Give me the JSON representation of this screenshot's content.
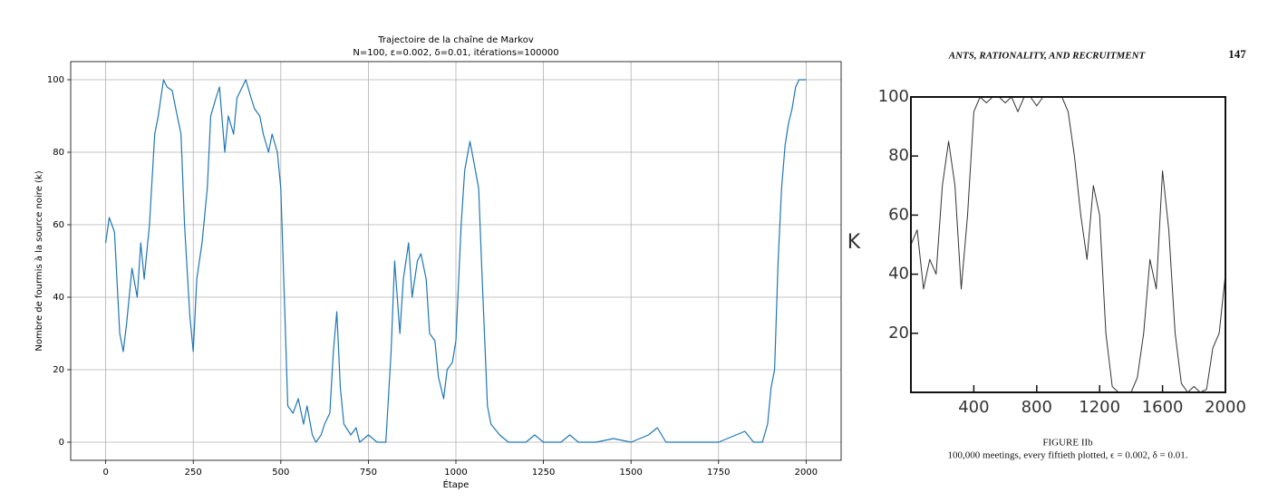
{
  "chart_data": [
    {
      "type": "line",
      "title": "Trajectoire de la chaîne de Markov",
      "subtitle": "N=100, ε=0.002, δ=0.01, itérations=100000",
      "xlabel": "Étape",
      "ylabel": "Nombre de fourmis à la source noire (k)",
      "xlim": [
        -100,
        2100
      ],
      "ylim": [
        -5,
        105
      ],
      "xticks": [
        0,
        250,
        500,
        750,
        1000,
        1250,
        1500,
        1750,
        2000
      ],
      "yticks": [
        0,
        20,
        40,
        60,
        80,
        100
      ],
      "grid": true,
      "series": [
        {
          "name": "k",
          "color": "#1f77b4",
          "x": [
            0,
            10,
            25,
            40,
            50,
            60,
            75,
            90,
            100,
            110,
            125,
            140,
            150,
            165,
            175,
            190,
            200,
            215,
            225,
            240,
            250,
            260,
            275,
            290,
            300,
            315,
            325,
            340,
            350,
            365,
            375,
            390,
            400,
            415,
            425,
            440,
            450,
            465,
            475,
            490,
            500,
            510,
            520,
            535,
            550,
            565,
            575,
            590,
            600,
            615,
            625,
            640,
            650,
            660,
            670,
            680,
            700,
            715,
            725,
            750,
            775,
            800,
            815,
            825,
            840,
            850,
            865,
            875,
            890,
            900,
            915,
            925,
            940,
            950,
            965,
            975,
            990,
            1000,
            1015,
            1025,
            1040,
            1050,
            1065,
            1075,
            1090,
            1100,
            1125,
            1150,
            1200,
            1225,
            1250,
            1300,
            1325,
            1350,
            1400,
            1450,
            1500,
            1550,
            1575,
            1600,
            1650,
            1700,
            1750,
            1800,
            1825,
            1850,
            1875,
            1890,
            1900,
            1910,
            1920,
            1930,
            1940,
            1950,
            1960,
            1970,
            1980,
            2000
          ],
          "values": [
            55,
            62,
            58,
            30,
            25,
            33,
            48,
            40,
            55,
            45,
            60,
            85,
            90,
            100,
            98,
            97,
            92,
            85,
            60,
            35,
            25,
            45,
            55,
            70,
            90,
            95,
            98,
            80,
            90,
            85,
            95,
            98,
            100,
            95,
            92,
            90,
            85,
            80,
            85,
            80,
            70,
            40,
            10,
            8,
            12,
            5,
            10,
            2,
            0,
            2,
            5,
            8,
            25,
            36,
            15,
            5,
            2,
            4,
            0,
            2,
            0,
            0,
            25,
            50,
            30,
            45,
            55,
            40,
            50,
            52,
            45,
            30,
            28,
            18,
            12,
            20,
            22,
            28,
            60,
            75,
            83,
            78,
            70,
            45,
            10,
            5,
            2,
            0,
            0,
            2,
            0,
            0,
            2,
            0,
            0,
            1,
            0,
            2,
            4,
            0,
            0,
            0,
            0,
            2,
            3,
            0,
            0,
            5,
            15,
            20,
            50,
            70,
            82,
            88,
            92,
            98,
            100,
            100
          ]
        }
      ]
    },
    {
      "type": "line",
      "header": "ANTS, RATIONALITY, AND RECRUITMENT",
      "page_number": "147",
      "ylabel": "K",
      "caption_title": "FIGURE IIb",
      "caption": "100,000 meetings, every fiftieth plotted, ϵ = 0.002, δ = 0.01.",
      "xlim": [
        0,
        2000
      ],
      "ylim": [
        0,
        100
      ],
      "xticks": [
        400,
        800,
        1200,
        1600,
        2000
      ],
      "yticks": [
        20,
        40,
        60,
        80,
        100
      ],
      "grid": false,
      "series": [
        {
          "name": "K",
          "color": "#333333",
          "x": [
            0,
            40,
            80,
            120,
            160,
            200,
            240,
            280,
            320,
            360,
            400,
            440,
            480,
            520,
            560,
            600,
            640,
            680,
            720,
            760,
            800,
            840,
            880,
            920,
            960,
            1000,
            1040,
            1080,
            1120,
            1160,
            1200,
            1240,
            1280,
            1320,
            1360,
            1400,
            1440,
            1480,
            1520,
            1560,
            1600,
            1640,
            1680,
            1720,
            1760,
            1800,
            1840,
            1880,
            1920,
            1960,
            2000
          ],
          "values": [
            50,
            55,
            35,
            45,
            40,
            70,
            85,
            70,
            35,
            60,
            95,
            100,
            98,
            100,
            100,
            98,
            100,
            95,
            100,
            100,
            97,
            100,
            100,
            100,
            100,
            95,
            80,
            60,
            45,
            70,
            60,
            20,
            2,
            0,
            0,
            0,
            5,
            20,
            45,
            35,
            75,
            55,
            20,
            3,
            0,
            2,
            0,
            1,
            15,
            20,
            40
          ]
        }
      ]
    }
  ]
}
